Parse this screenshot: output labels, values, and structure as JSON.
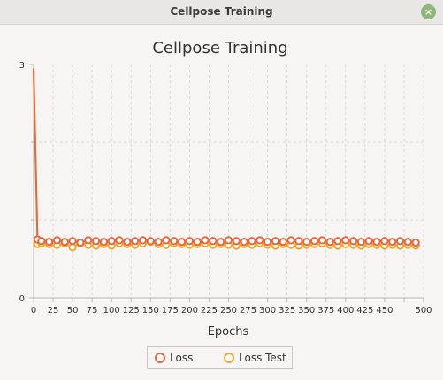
{
  "window": {
    "title": "Cellpose Training",
    "close_icon": "×"
  },
  "chart_data": {
    "type": "line",
    "title": "Cellpose Training",
    "xlabel": "Epochs",
    "ylabel": "",
    "xlim": [
      0,
      500
    ],
    "ylim": [
      0,
      3
    ],
    "x_ticks": [
      0,
      25,
      50,
      75,
      100,
      125,
      150,
      175,
      200,
      225,
      250,
      275,
      300,
      325,
      350,
      375,
      400,
      425,
      450,
      475,
      500
    ],
    "x_tick_labels": [
      "0",
      "25",
      "50",
      "75",
      "100",
      "125",
      "150",
      "175",
      "200",
      "225",
      "250",
      "275",
      "300",
      "325",
      "350",
      "375",
      "400",
      "425",
      "450",
      "",
      "500"
    ],
    "y_ticks": [
      0,
      3
    ],
    "grid": true,
    "legend_position": "bottom",
    "x": [
      0,
      5,
      10,
      20,
      30,
      40,
      50,
      60,
      70,
      80,
      90,
      100,
      110,
      120,
      130,
      140,
      150,
      160,
      170,
      180,
      190,
      200,
      210,
      220,
      230,
      240,
      250,
      260,
      270,
      280,
      290,
      300,
      310,
      320,
      330,
      340,
      350,
      360,
      370,
      380,
      390,
      400,
      410,
      420,
      430,
      440,
      450,
      460,
      470,
      480,
      490
    ],
    "series": [
      {
        "name": "Loss",
        "color": "#e6683e",
        "values": [
          2.95,
          0.75,
          0.73,
          0.72,
          0.74,
          0.72,
          0.73,
          0.71,
          0.74,
          0.73,
          0.72,
          0.73,
          0.74,
          0.72,
          0.73,
          0.74,
          0.73,
          0.72,
          0.74,
          0.73,
          0.72,
          0.73,
          0.72,
          0.74,
          0.73,
          0.72,
          0.74,
          0.73,
          0.72,
          0.73,
          0.74,
          0.72,
          0.73,
          0.72,
          0.74,
          0.73,
          0.72,
          0.73,
          0.74,
          0.72,
          0.73,
          0.74,
          0.73,
          0.72,
          0.73,
          0.72,
          0.73,
          0.72,
          0.73,
          0.72,
          0.71
        ]
      },
      {
        "name": "Loss Test",
        "color": "#f0a830",
        "values": [
          2.95,
          0.69,
          0.7,
          0.69,
          0.68,
          0.7,
          0.65,
          0.7,
          0.68,
          0.67,
          0.69,
          0.67,
          0.7,
          0.69,
          0.68,
          0.7,
          0.72,
          0.69,
          0.68,
          0.7,
          0.69,
          0.68,
          0.69,
          0.7,
          0.68,
          0.69,
          0.68,
          0.67,
          0.69,
          0.68,
          0.7,
          0.68,
          0.67,
          0.69,
          0.68,
          0.67,
          0.68,
          0.69,
          0.7,
          0.68,
          0.67,
          0.69,
          0.68,
          0.67,
          0.69,
          0.68,
          0.67,
          0.68,
          0.67,
          0.68,
          0.67
        ]
      }
    ]
  }
}
